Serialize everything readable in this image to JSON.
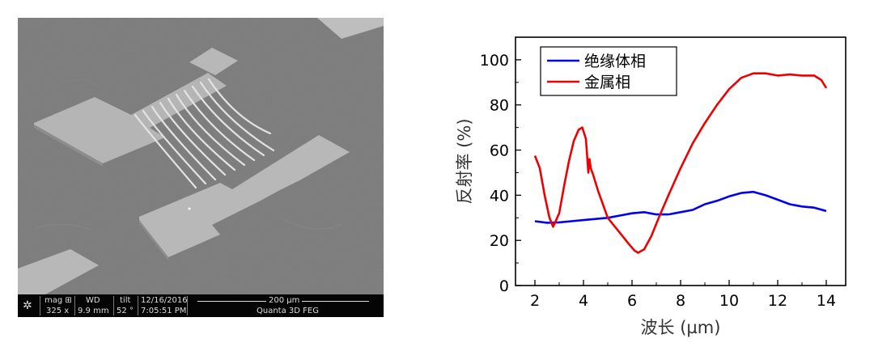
{
  "sem_image": {
    "mag_label": "mag ⊞",
    "mag_value": "325 x",
    "wd_label": "WD",
    "wd_value": "9.9 mm",
    "tilt_label": "tilt",
    "tilt_value": "52 °",
    "date": "12/16/2016",
    "time": "7:05:51 PM",
    "scale_bar": "200 µm",
    "instrument": "Quanta 3D FEG"
  },
  "chart_data": {
    "type": "line",
    "xlabel": "波长 (µm)",
    "ylabel": "反射率 (%)",
    "xlim": [
      1.2,
      14.8
    ],
    "ylim": [
      0,
      110
    ],
    "xticks": [
      2,
      4,
      6,
      8,
      10,
      12,
      14
    ],
    "yticks": [
      0,
      20,
      40,
      60,
      80,
      100
    ],
    "legend_position": "top-left",
    "series": [
      {
        "name": "绝缘体相",
        "color": "#0000ee",
        "x": [
          2.0,
          2.5,
          3.0,
          3.5,
          4.0,
          4.5,
          5.0,
          5.5,
          6.0,
          6.5,
          7.0,
          7.5,
          8.0,
          8.5,
          9.0,
          9.5,
          10.0,
          10.5,
          11.0,
          11.5,
          12.0,
          12.5,
          13.0,
          13.5,
          14.0
        ],
        "y": [
          28.5,
          27.8,
          28.0,
          28.5,
          29.0,
          29.5,
          30.0,
          31.0,
          32.0,
          32.5,
          31.5,
          31.5,
          32.5,
          33.5,
          36.0,
          37.5,
          39.5,
          41.0,
          41.5,
          40.0,
          38.0,
          36.0,
          35.0,
          34.5,
          33.0
        ]
      },
      {
        "name": "金属相",
        "color": "#ee0000",
        "x": [
          2.0,
          2.2,
          2.4,
          2.6,
          2.75,
          3.0,
          3.2,
          3.4,
          3.6,
          3.8,
          3.95,
          4.1,
          4.2,
          4.25,
          4.3,
          4.4,
          4.6,
          4.8,
          5.0,
          5.3,
          5.6,
          5.9,
          6.1,
          6.25,
          6.5,
          6.8,
          7.1,
          7.5,
          8.0,
          8.5,
          9.0,
          9.5,
          10.0,
          10.5,
          11.0,
          11.5,
          12.0,
          12.5,
          13.0,
          13.5,
          13.8,
          14.0
        ],
        "y": [
          57.5,
          52.0,
          40.0,
          30.0,
          26.0,
          32.0,
          44.0,
          55.0,
          64.0,
          69.0,
          70.0,
          65.0,
          50.0,
          56.0,
          52.0,
          49.0,
          42.0,
          36.0,
          30.0,
          26.0,
          22.0,
          18.0,
          15.5,
          14.5,
          16.0,
          22.0,
          30.0,
          40.0,
          52.0,
          63.0,
          72.0,
          80.0,
          87.0,
          92.0,
          94.0,
          94.0,
          93.0,
          93.5,
          93.0,
          93.0,
          91.0,
          87.5
        ]
      }
    ]
  }
}
